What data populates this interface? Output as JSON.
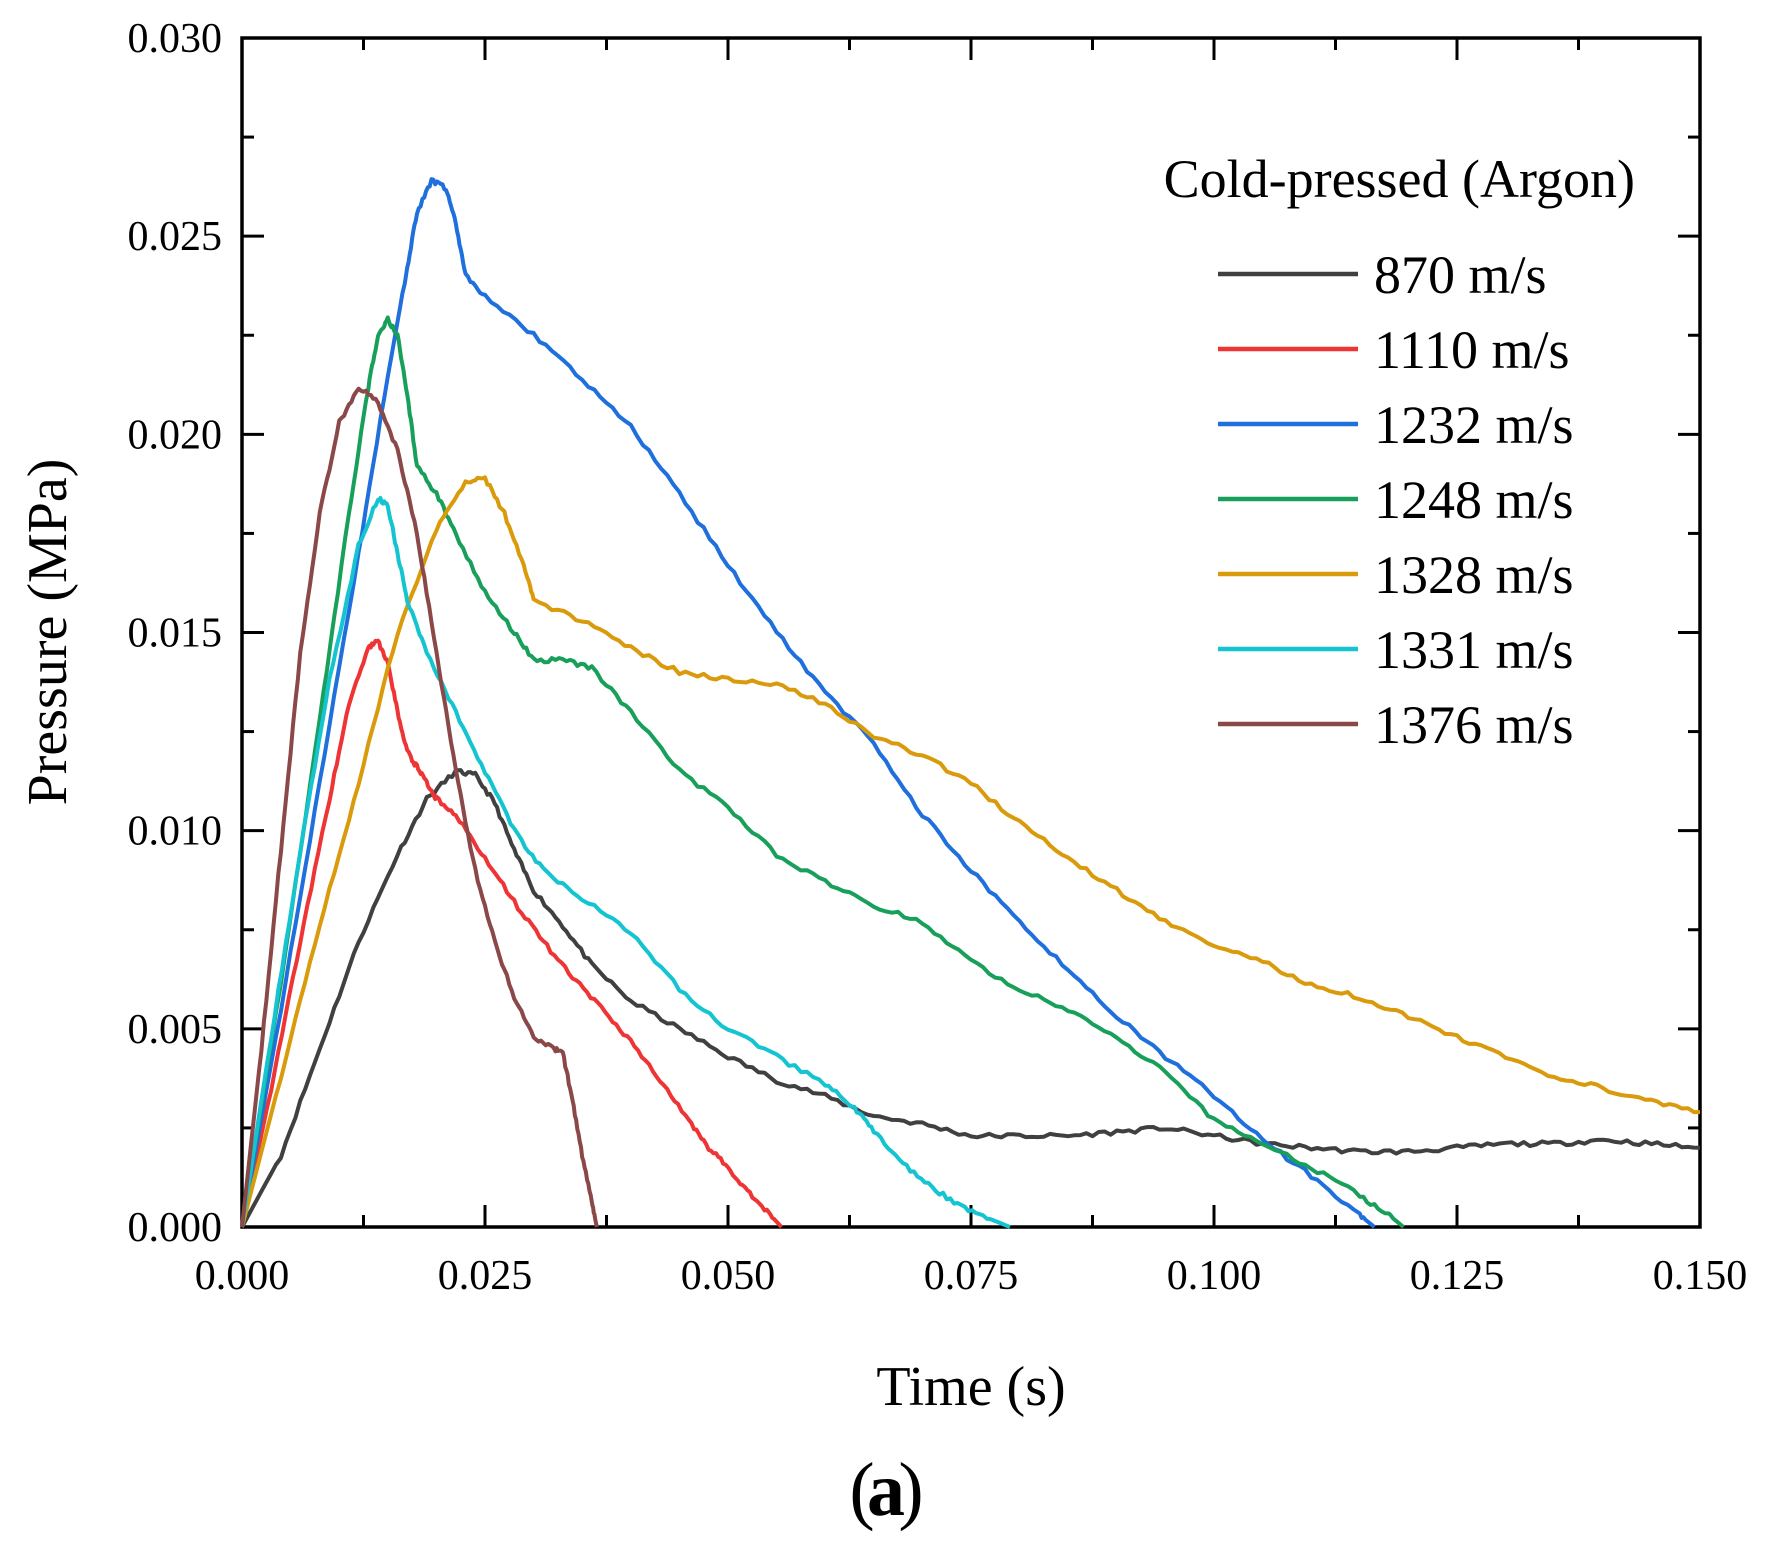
{
  "chart_data": {
    "type": "line",
    "title": "",
    "xlabel": "Time (s)",
    "ylabel": "Pressure (MPa)",
    "xlim": [
      0.0,
      0.15
    ],
    "ylim": [
      0.0,
      0.03
    ],
    "x_ticks": [
      "0.000",
      "0.025",
      "0.050",
      "0.075",
      "0.100",
      "0.125",
      "0.150"
    ],
    "y_ticks": [
      "0.000",
      "0.005",
      "0.010",
      "0.015",
      "0.020",
      "0.025",
      "0.030"
    ],
    "grid": false,
    "legend_title": "Cold-pressed (Argon)",
    "legend_position": "top-right",
    "panel_label": "a",
    "series": [
      {
        "name": "870 m/s",
        "color": "#404040",
        "points": [
          [
            0,
            0
          ],
          [
            0.004,
            0.0018
          ],
          [
            0.008,
            0.0045
          ],
          [
            0.012,
            0.0072
          ],
          [
            0.016,
            0.0094
          ],
          [
            0.019,
            0.0108
          ],
          [
            0.022,
            0.0115
          ],
          [
            0.024,
            0.0114
          ],
          [
            0.026,
            0.0107
          ],
          [
            0.028,
            0.0095
          ],
          [
            0.03,
            0.0085
          ],
          [
            0.033,
            0.0076
          ],
          [
            0.036,
            0.0066
          ],
          [
            0.04,
            0.0057
          ],
          [
            0.045,
            0.005
          ],
          [
            0.05,
            0.0043
          ],
          [
            0.055,
            0.0037
          ],
          [
            0.06,
            0.0033
          ],
          [
            0.065,
            0.0028
          ],
          [
            0.07,
            0.0026
          ],
          [
            0.075,
            0.0023
          ],
          [
            0.08,
            0.0023
          ],
          [
            0.085,
            0.0023
          ],
          [
            0.09,
            0.0024
          ],
          [
            0.095,
            0.0025
          ],
          [
            0.1,
            0.0023
          ],
          [
            0.105,
            0.0021
          ],
          [
            0.11,
            0.002
          ],
          [
            0.115,
            0.0019
          ],
          [
            0.12,
            0.0019
          ],
          [
            0.125,
            0.002
          ],
          [
            0.13,
            0.0021
          ],
          [
            0.135,
            0.0021
          ],
          [
            0.14,
            0.0022
          ],
          [
            0.145,
            0.0021
          ],
          [
            0.15,
            0.002
          ]
        ]
      },
      {
        "name": "1110 m/s",
        "color": "#ee3434",
        "points": [
          [
            0,
            0
          ],
          [
            0.003,
            0.0035
          ],
          [
            0.006,
            0.0072
          ],
          [
            0.009,
            0.0108
          ],
          [
            0.011,
            0.0132
          ],
          [
            0.013,
            0.0146
          ],
          [
            0.014,
            0.0148
          ],
          [
            0.015,
            0.0142
          ],
          [
            0.016,
            0.013
          ],
          [
            0.017,
            0.012
          ],
          [
            0.018,
            0.0116
          ],
          [
            0.019,
            0.0112
          ],
          [
            0.02,
            0.0108
          ],
          [
            0.022,
            0.0104
          ],
          [
            0.025,
            0.0093
          ],
          [
            0.028,
            0.0082
          ],
          [
            0.031,
            0.0072
          ],
          [
            0.034,
            0.0063
          ],
          [
            0.037,
            0.0055
          ],
          [
            0.04,
            0.0047
          ],
          [
            0.043,
            0.0037
          ],
          [
            0.046,
            0.0027
          ],
          [
            0.048,
            0.002
          ],
          [
            0.05,
            0.0015
          ],
          [
            0.052,
            0.0009
          ],
          [
            0.054,
            0.0004
          ],
          [
            0.0555,
            0.0
          ]
        ]
      },
      {
        "name": "1232 m/s",
        "color": "#1f6fdc",
        "points": [
          [
            0,
            0
          ],
          [
            0.004,
            0.0055
          ],
          [
            0.008,
            0.0112
          ],
          [
            0.012,
            0.017
          ],
          [
            0.015,
            0.0215
          ],
          [
            0.017,
            0.0242
          ],
          [
            0.018,
            0.0256
          ],
          [
            0.0195,
            0.0264
          ],
          [
            0.021,
            0.0262
          ],
          [
            0.022,
            0.0253
          ],
          [
            0.023,
            0.024
          ],
          [
            0.025,
            0.0235
          ],
          [
            0.03,
            0.0225
          ],
          [
            0.035,
            0.0214
          ],
          [
            0.04,
            0.0202
          ],
          [
            0.045,
            0.0185
          ],
          [
            0.05,
            0.0167
          ],
          [
            0.055,
            0.015
          ],
          [
            0.06,
            0.0135
          ],
          [
            0.065,
            0.0122
          ],
          [
            0.07,
            0.0104
          ],
          [
            0.075,
            0.009
          ],
          [
            0.08,
            0.0077
          ],
          [
            0.085,
            0.0065
          ],
          [
            0.09,
            0.0053
          ],
          [
            0.095,
            0.0043
          ],
          [
            0.1,
            0.0033
          ],
          [
            0.105,
            0.0022
          ],
          [
            0.11,
            0.0013
          ],
          [
            0.115,
            0.0003
          ],
          [
            0.1165,
            0.0
          ]
        ]
      },
      {
        "name": "1248 m/s",
        "color": "#18a05a",
        "points": [
          [
            0,
            0
          ],
          [
            0.004,
            0.0062
          ],
          [
            0.008,
            0.0128
          ],
          [
            0.011,
            0.018
          ],
          [
            0.013,
            0.0212
          ],
          [
            0.014,
            0.0225
          ],
          [
            0.015,
            0.0229
          ],
          [
            0.016,
            0.0225
          ],
          [
            0.017,
            0.021
          ],
          [
            0.018,
            0.0192
          ],
          [
            0.02,
            0.0185
          ],
          [
            0.022,
            0.0175
          ],
          [
            0.025,
            0.016
          ],
          [
            0.028,
            0.015
          ],
          [
            0.03,
            0.0143
          ],
          [
            0.033,
            0.0143
          ],
          [
            0.036,
            0.0141
          ],
          [
            0.04,
            0.013
          ],
          [
            0.045,
            0.0115
          ],
          [
            0.05,
            0.0106
          ],
          [
            0.055,
            0.0094
          ],
          [
            0.06,
            0.0087
          ],
          [
            0.065,
            0.0081
          ],
          [
            0.07,
            0.0077
          ],
          [
            0.075,
            0.0067
          ],
          [
            0.08,
            0.006
          ],
          [
            0.085,
            0.0055
          ],
          [
            0.09,
            0.0048
          ],
          [
            0.095,
            0.0039
          ],
          [
            0.1,
            0.0027
          ],
          [
            0.105,
            0.0021
          ],
          [
            0.11,
            0.0015
          ],
          [
            0.115,
            0.0008
          ],
          [
            0.118,
            0.0003
          ],
          [
            0.1195,
            0.0
          ]
        ]
      },
      {
        "name": "1328 m/s",
        "color": "#d99a0b",
        "points": [
          [
            0,
            0
          ],
          [
            0.004,
            0.0038
          ],
          [
            0.008,
            0.0076
          ],
          [
            0.012,
            0.0112
          ],
          [
            0.016,
            0.015
          ],
          [
            0.02,
            0.0176
          ],
          [
            0.023,
            0.0188
          ],
          [
            0.025,
            0.0189
          ],
          [
            0.027,
            0.018
          ],
          [
            0.029,
            0.0167
          ],
          [
            0.03,
            0.0158
          ],
          [
            0.035,
            0.0153
          ],
          [
            0.04,
            0.0146
          ],
          [
            0.045,
            0.014
          ],
          [
            0.05,
            0.0138
          ],
          [
            0.055,
            0.0137
          ],
          [
            0.06,
            0.0132
          ],
          [
            0.065,
            0.0124
          ],
          [
            0.07,
            0.0119
          ],
          [
            0.075,
            0.0112
          ],
          [
            0.08,
            0.0102
          ],
          [
            0.085,
            0.0093
          ],
          [
            0.09,
            0.0085
          ],
          [
            0.095,
            0.0077
          ],
          [
            0.1,
            0.0071
          ],
          [
            0.105,
            0.0067
          ],
          [
            0.11,
            0.0061
          ],
          [
            0.115,
            0.0058
          ],
          [
            0.12,
            0.0053
          ],
          [
            0.125,
            0.0048
          ],
          [
            0.13,
            0.0043
          ],
          [
            0.135,
            0.0038
          ],
          [
            0.14,
            0.0035
          ],
          [
            0.145,
            0.0032
          ],
          [
            0.15,
            0.0029
          ]
        ]
      },
      {
        "name": "1331 m/s",
        "color": "#14c4d0",
        "points": [
          [
            0,
            0
          ],
          [
            0.003,
            0.0048
          ],
          [
            0.006,
            0.0095
          ],
          [
            0.009,
            0.0138
          ],
          [
            0.012,
            0.0172
          ],
          [
            0.014,
            0.0184
          ],
          [
            0.015,
            0.0182
          ],
          [
            0.016,
            0.017
          ],
          [
            0.017,
            0.0158
          ],
          [
            0.019,
            0.0145
          ],
          [
            0.022,
            0.013
          ],
          [
            0.025,
            0.0115
          ],
          [
            0.028,
            0.01
          ],
          [
            0.031,
            0.009
          ],
          [
            0.035,
            0.0083
          ],
          [
            0.04,
            0.0074
          ],
          [
            0.045,
            0.006
          ],
          [
            0.05,
            0.005
          ],
          [
            0.055,
            0.0043
          ],
          [
            0.06,
            0.0036
          ],
          [
            0.063,
            0.003
          ],
          [
            0.065,
            0.0024
          ],
          [
            0.068,
            0.0016
          ],
          [
            0.071,
            0.001
          ],
          [
            0.074,
            0.0005
          ],
          [
            0.077,
            0.0002
          ],
          [
            0.079,
            0.0
          ]
        ]
      },
      {
        "name": "1376 m/s",
        "color": "#8b4848",
        "points": [
          [
            0,
            0
          ],
          [
            0.002,
            0.0045
          ],
          [
            0.004,
            0.0095
          ],
          [
            0.006,
            0.0145
          ],
          [
            0.008,
            0.018
          ],
          [
            0.01,
            0.0203
          ],
          [
            0.012,
            0.0212
          ],
          [
            0.014,
            0.0208
          ],
          [
            0.016,
            0.0196
          ],
          [
            0.018,
            0.0175
          ],
          [
            0.02,
            0.0145
          ],
          [
            0.022,
            0.0115
          ],
          [
            0.024,
            0.009
          ],
          [
            0.026,
            0.0072
          ],
          [
            0.028,
            0.0058
          ],
          [
            0.03,
            0.0048
          ],
          [
            0.032,
            0.0045
          ],
          [
            0.033,
            0.0044
          ],
          [
            0.034,
            0.0032
          ],
          [
            0.035,
            0.0018
          ],
          [
            0.036,
            0.0006
          ],
          [
            0.0365,
            0.0
          ]
        ]
      }
    ]
  }
}
